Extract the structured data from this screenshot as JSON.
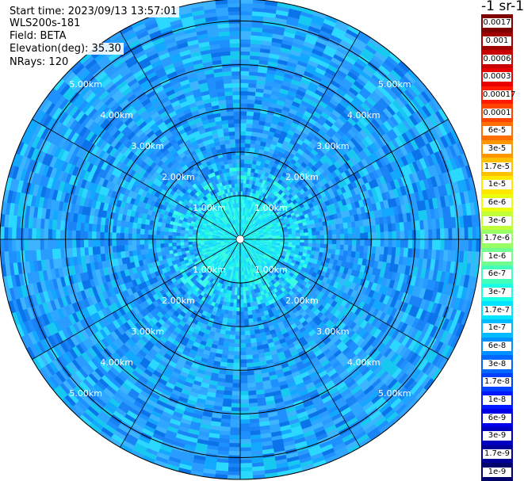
{
  "header": {
    "start_time": "Start time: 2023/09/13 13:57:01",
    "instrument": "WLS200s-181",
    "field": "Field: BETA",
    "elevation": "Elevation(deg): 35.30",
    "nrays": "NRays: 120"
  },
  "colorbar": {
    "title": "-1 sr-1",
    "labels": [
      "0.0017",
      "0.001",
      "0.0006",
      "0.0003",
      "0.00017",
      "0.0001",
      "6e-5",
      "3e-5",
      "1.7e-5",
      "1e-5",
      "6e-6",
      "3e-6",
      "1.7e-6",
      "1e-6",
      "6e-7",
      "3e-7",
      "1.7e-7",
      "1e-7",
      "6e-8",
      "3e-8",
      "1.7e-8",
      "1e-8",
      "6e-9",
      "3e-9",
      "1.7e-9",
      "1e-9"
    ],
    "colors": [
      "#7f0000",
      "#a00000",
      "#c80000",
      "#e80000",
      "#ff1a00",
      "#ff4400",
      "#ff6e00",
      "#ff9800",
      "#ffc000",
      "#ffe800",
      "#eaff10",
      "#c0ff3a",
      "#98ff64",
      "#70ff8e",
      "#44ffba",
      "#1affe4",
      "#00e4ff",
      "#00bcff",
      "#0090ff",
      "#0068ff",
      "#0040ff",
      "#0018ff",
      "#0000e8",
      "#0000c0",
      "#000098",
      "#00006e"
    ]
  },
  "chart_data": {
    "type": "heatmap",
    "projection": "polar-ppi",
    "rays": 120,
    "ring_labels": [
      "1.00km",
      "2.00km",
      "3.00km",
      "4.00km",
      "5.00km"
    ],
    "ring_ranges_km": [
      1,
      2,
      3,
      4,
      5
    ],
    "max_range_km": 5.5,
    "spokes_deg": [
      0,
      30,
      60,
      90,
      120,
      150,
      180,
      210,
      240,
      270,
      300,
      330
    ],
    "color_scale": "log",
    "value_range": [
      1e-09,
      0.0017
    ]
  }
}
